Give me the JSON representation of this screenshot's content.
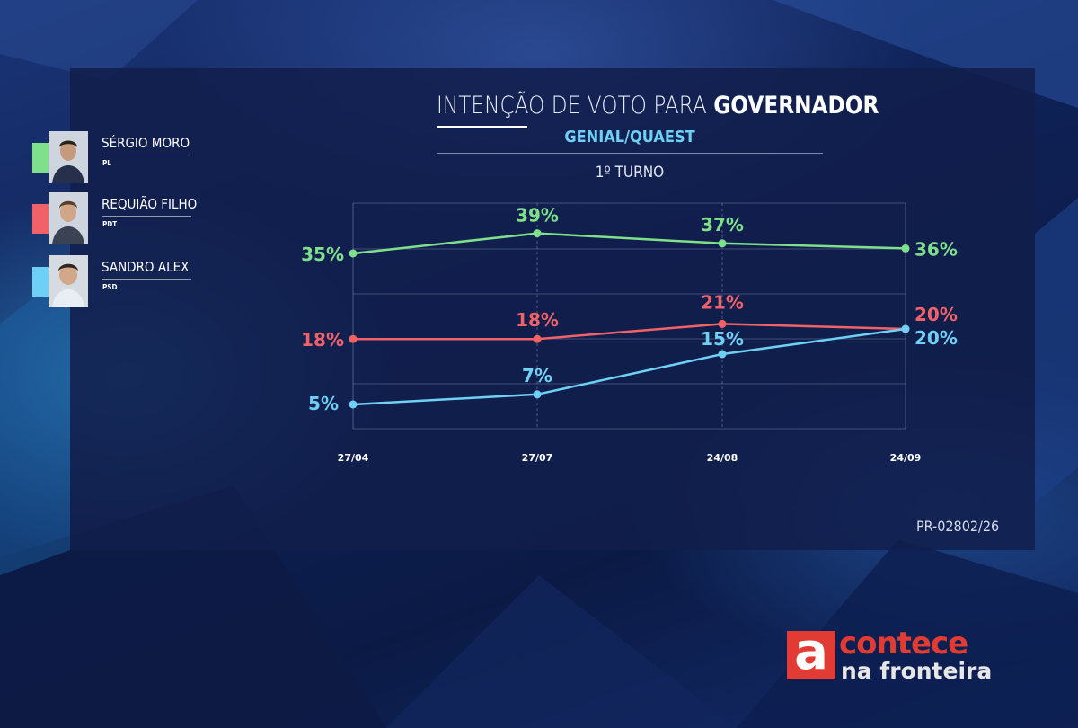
{
  "header": {
    "title_light": "INTENÇÃO DE VOTO PARA",
    "title_bold": "GOVERNADOR",
    "subtitle": "GENIAL/QUAEST",
    "round": "1º TURNO"
  },
  "legend": [
    {
      "name": "SÉRGIO MORO",
      "party": "PL",
      "color": "#7ee08a"
    },
    {
      "name": "REQUIÃO FILHO",
      "party": "PDT",
      "color": "#f06267"
    },
    {
      "name": "SANDRO ALEX",
      "party": "PSD",
      "color": "#6fd0f5"
    }
  ],
  "chart_data": {
    "type": "line",
    "categories": [
      "27/04",
      "27/07",
      "24/08",
      "24/09"
    ],
    "series": [
      {
        "name": "SÉRGIO MORO",
        "values": [
          35,
          39,
          37,
          36
        ],
        "labels": [
          "35%",
          "39%",
          "37%",
          "36%"
        ],
        "color": "#7ee08a"
      },
      {
        "name": "REQUIÃO FILHO",
        "values": [
          18,
          18,
          21,
          20
        ],
        "labels": [
          "18%",
          "18%",
          "21%",
          "20%"
        ],
        "color": "#f06267"
      },
      {
        "name": "SANDRO ALEX",
        "values": [
          5,
          7,
          15,
          20
        ],
        "labels": [
          "5%",
          "7%",
          "15%",
          "20%"
        ],
        "color": "#6fd0f5"
      }
    ],
    "grid": true,
    "legend_position": "left"
  },
  "footer": {
    "code": "PR-02802/26"
  },
  "logo": {
    "mark": "a",
    "top": "contece",
    "bottom": "na fronteira"
  }
}
